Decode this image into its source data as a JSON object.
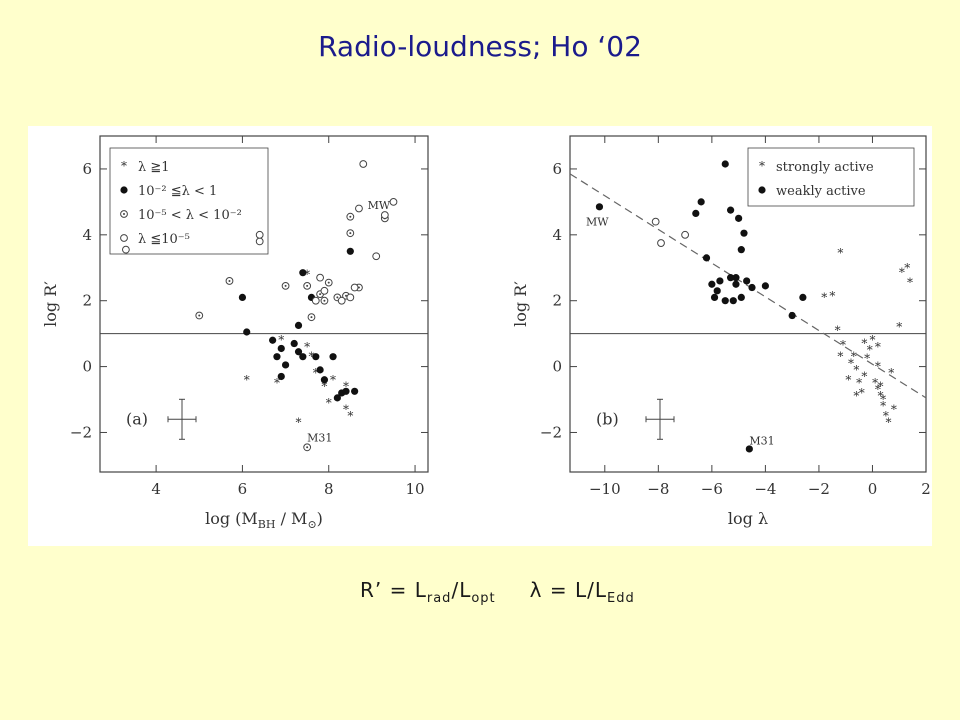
{
  "slide": {
    "title": "Radio-loudness; Ho ‘02"
  },
  "caption": {
    "r_prefix": "R’ = L",
    "r_sub1": "rad",
    "r_mid": "/L",
    "r_sub2": "opt",
    "lambda_symbol": "λ",
    "l_prefix": " = L/L",
    "l_sub": "Edd"
  },
  "colors": {
    "background": "#FFFFCC",
    "title": "#1B1B8C"
  },
  "chart_data": [
    {
      "type": "scatter",
      "panel_label": "(a)",
      "xlabel_main": "log (M",
      "xlabel_sub1": "BH",
      "xlabel_mid": " / M",
      "xlabel_sub2": "⊙",
      "xlabel_end": ")",
      "ylabel": "log R′",
      "xlim": [
        2.7,
        10.3
      ],
      "ylim": [
        -3.2,
        7
      ],
      "xticks": [
        4,
        6,
        8,
        10
      ],
      "xticklabels": [
        "4",
        "6",
        "8",
        "10"
      ],
      "yticks": [
        -2,
        0,
        2,
        4,
        6
      ],
      "yticklabels": [
        "−2",
        "0",
        "2",
        "4",
        "6"
      ],
      "hline": 1,
      "legend_position": "top-left",
      "legend": [
        {
          "marker": "star",
          "label": "λ ≧1"
        },
        {
          "marker": "filled",
          "label": "10⁻² ≦λ < 1"
        },
        {
          "marker": "dotted",
          "label": "10⁻⁵ < λ < 10⁻²"
        },
        {
          "marker": "open",
          "label": "λ ≦10⁻⁵"
        }
      ],
      "annotations": [
        {
          "text": "MW",
          "x": 8.9,
          "y": 4.9
        },
        {
          "text": "M31",
          "x": 7.5,
          "y": -2.15
        }
      ],
      "series": [
        {
          "marker": "star",
          "x": [
            6.1,
            6.8,
            6.9,
            7.5,
            7.5,
            7.6,
            7.7,
            7.9,
            7.3,
            8.0,
            8.3,
            8.4,
            8.5,
            8.4,
            8.1
          ],
          "y": [
            -0.4,
            -0.5,
            0.8,
            2.8,
            0.6,
            0.3,
            -0.2,
            -0.6,
            -1.7,
            -1.1,
            -0.9,
            -0.6,
            -1.5,
            -1.3,
            -0.4
          ]
        },
        {
          "marker": "filled",
          "x": [
            6.0,
            6.1,
            6.7,
            6.8,
            6.9,
            7.0,
            7.2,
            7.3,
            7.4,
            7.6,
            7.7,
            7.8,
            7.9,
            8.1,
            8.2,
            8.3,
            8.4,
            8.6,
            6.9,
            7.3,
            7.4,
            8.5
          ],
          "y": [
            2.1,
            1.05,
            0.8,
            0.3,
            -0.3,
            0.05,
            0.7,
            1.25,
            2.85,
            2.1,
            0.3,
            -0.1,
            -0.4,
            0.3,
            -0.95,
            -0.8,
            -0.75,
            -0.75,
            0.55,
            0.45,
            0.3,
            3.5
          ]
        },
        {
          "marker": "dotted",
          "x": [
            5.0,
            5.7,
            7.0,
            7.5,
            7.6,
            7.8,
            7.9,
            8.0,
            8.2,
            8.4,
            8.5,
            8.5,
            8.7,
            9.3,
            7.5
          ],
          "y": [
            1.55,
            2.6,
            2.45,
            2.45,
            1.5,
            2.2,
            2.0,
            2.55,
            2.1,
            2.15,
            4.05,
            4.55,
            2.4,
            4.5,
            -2.45
          ]
        },
        {
          "marker": "open",
          "x": [
            3.3,
            6.4,
            6.4,
            7.8,
            7.9,
            8.3,
            8.6,
            8.7,
            8.8,
            9.1,
            9.3,
            9.5,
            7.7,
            8.5
          ],
          "y": [
            3.55,
            3.8,
            4.0,
            2.7,
            2.3,
            2.0,
            2.4,
            4.8,
            6.15,
            3.35,
            4.6,
            5.0,
            2.0,
            2.1
          ]
        }
      ]
    },
    {
      "type": "scatter",
      "panel_label": "(b)",
      "xlabel": "log λ",
      "ylabel": "log R′",
      "xlim": [
        -11.3,
        2.0
      ],
      "ylim": [
        -3.2,
        7
      ],
      "xticks": [
        -10,
        -8,
        -6,
        -4,
        -2,
        0,
        2
      ],
      "xticklabels": [
        "−10",
        "−8",
        "−6",
        "−4",
        "−2",
        "0",
        "2"
      ],
      "yticks": [
        -2,
        0,
        2,
        4,
        6
      ],
      "yticklabels": [
        "−2",
        "0",
        "2",
        "4",
        "6"
      ],
      "hline": 1,
      "fit_line": {
        "x": [
          -11.3,
          2.0
        ],
        "y": [
          5.85,
          -0.95
        ]
      },
      "legend_position": "top-right",
      "legend": [
        {
          "marker": "star",
          "label": "strongly active"
        },
        {
          "marker": "filled",
          "label": "weakly active"
        }
      ],
      "annotations": [
        {
          "text": "MW",
          "x": -10.7,
          "y": 4.4
        },
        {
          "text": "M31",
          "x": -4.6,
          "y": -2.25
        }
      ],
      "series": [
        {
          "marker": "star",
          "x": [
            -1.8,
            -1.5,
            -1.2,
            -1.1,
            -0.7,
            -0.6,
            -0.5,
            -0.4,
            -0.3,
            -0.2,
            0.0,
            0.1,
            0.2,
            0.3,
            0.4,
            0.5,
            0.6,
            0.8,
            -0.3,
            -0.1,
            0.2,
            1.0,
            1.3,
            1.4,
            -1.2,
            0.2,
            -0.6,
            -0.9,
            -1.3,
            0.4,
            0.7,
            1.1,
            -0.8,
            0.3
          ],
          "y": [
            2.1,
            2.15,
            3.45,
            0.65,
            0.3,
            -0.1,
            -0.5,
            -0.8,
            -0.3,
            0.25,
            0.8,
            -0.5,
            -0.7,
            -0.9,
            -1.2,
            -1.5,
            -1.7,
            -1.3,
            0.7,
            0.5,
            0.0,
            1.2,
            3.0,
            2.55,
            0.3,
            0.6,
            -0.9,
            -0.4,
            1.1,
            -1.0,
            -0.2,
            2.85,
            0.1,
            -0.6
          ]
        },
        {
          "marker": "filled",
          "x": [
            -10.2,
            -6.6,
            -6.4,
            -5.5,
            -5.3,
            -5.0,
            -4.9,
            -4.8,
            -5.1,
            -4.7,
            -4.5,
            -5.8,
            -6.2,
            -6.0,
            -5.9,
            -5.7,
            -5.5,
            -5.3,
            -5.2,
            -5.1,
            -4.9,
            -4.0,
            -2.6,
            -3.0,
            -4.6
          ],
          "y": [
            4.85,
            4.65,
            5.0,
            6.15,
            4.75,
            4.5,
            3.55,
            4.05,
            2.7,
            2.6,
            2.4,
            2.3,
            3.3,
            2.5,
            2.1,
            2.6,
            2.0,
            2.7,
            2.0,
            2.5,
            2.1,
            2.45,
            2.1,
            1.55,
            -2.5
          ]
        },
        {
          "marker": "open",
          "x": [
            -8.1,
            -7.9,
            -7.0
          ],
          "y": [
            4.4,
            3.75,
            4.0
          ]
        }
      ]
    }
  ]
}
